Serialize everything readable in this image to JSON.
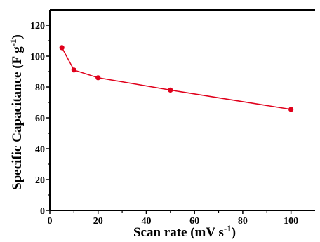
{
  "chart_data": {
    "type": "line",
    "xlabel": "Scan rate (mV s",
    "xlabel_sup": "-1",
    "xlabel_end": ")",
    "ylabel": "Specific Capacitance (F g",
    "ylabel_sup": "-1",
    "ylabel_end": ")",
    "xlim": [
      0,
      110
    ],
    "ylim": [
      0,
      130
    ],
    "xticks": [
      0,
      20,
      40,
      60,
      80,
      100
    ],
    "yticks": [
      0,
      20,
      40,
      60,
      80,
      100,
      120
    ],
    "grid": false,
    "series": [
      {
        "color": "#e0001b",
        "marker": "circle",
        "x": [
          5,
          10,
          20,
          50,
          100
        ],
        "y": [
          105.5,
          91,
          86,
          78,
          65.5
        ]
      }
    ]
  }
}
